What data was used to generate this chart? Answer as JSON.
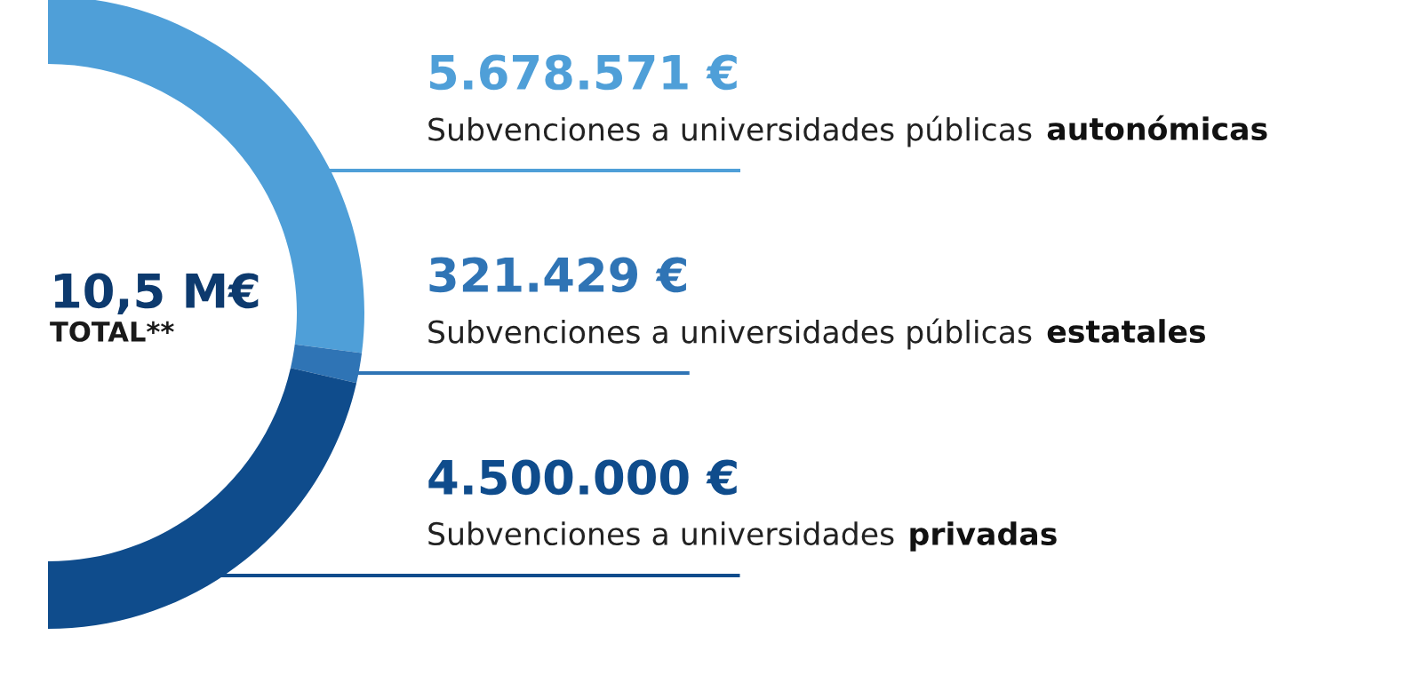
{
  "chart_data": {
    "type": "donut",
    "categories": [
      "Subvenciones a universidades públicas autonómicas",
      "Subvenciones a universidades públicas estatales",
      "Subvenciones a universidades privadas"
    ],
    "values": [
      5678571,
      321429,
      4500000
    ],
    "colors": [
      "#4f9fd8",
      "#2f74b5",
      "#0f4c8c"
    ],
    "value_labels": [
      "5.678.571 €",
      "321.429 €",
      "4.500.000 €"
    ],
    "annotations": [
      "10,5 M€",
      "TOTAL**"
    ],
    "legend": false
  }
}
